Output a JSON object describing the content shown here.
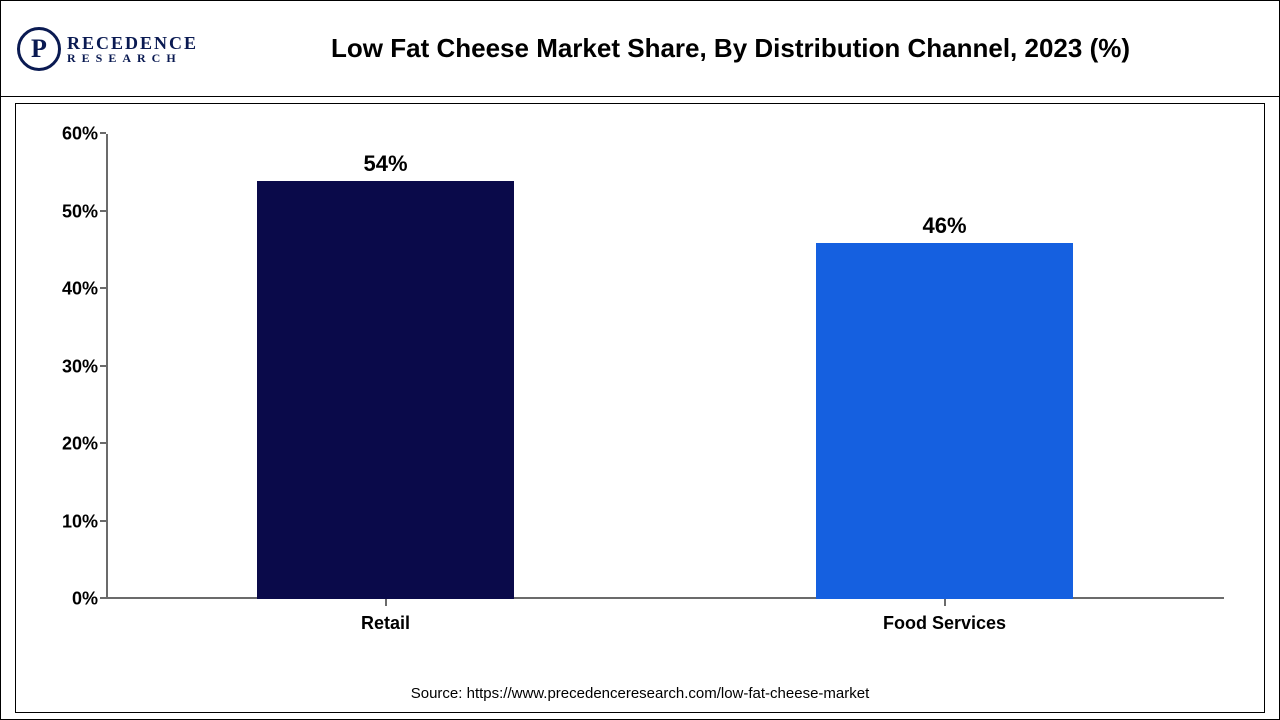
{
  "logo": {
    "letter": "P",
    "main": "RECEDENCE",
    "sub": "RESEARCH"
  },
  "chart": {
    "type": "bar",
    "title": "Low Fat Cheese Market Share, By Distribution Channel, 2023 (%)",
    "categories": [
      "Retail",
      "Food Services"
    ],
    "values": [
      54,
      46
    ],
    "value_labels": [
      "54%",
      "46%"
    ],
    "bar_colors": [
      "#0a0a4a",
      "#1560e0"
    ],
    "ylim": [
      0,
      60
    ],
    "ytick_step": 10,
    "ytick_labels": [
      "0%",
      "10%",
      "20%",
      "30%",
      "40%",
      "50%",
      "60%"
    ],
    "axis_color": "#6b6b6b",
    "background_color": "#ffffff",
    "title_fontsize": 26,
    "label_fontsize": 18,
    "value_label_fontsize": 22,
    "bar_width": 0.46
  },
  "source": "Source: https://www.precedenceresearch.com/low-fat-cheese-market"
}
